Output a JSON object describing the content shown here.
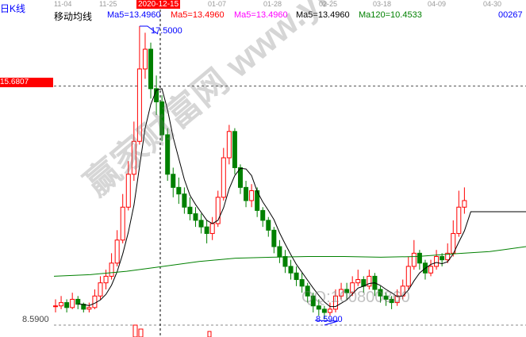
{
  "title": "日K线",
  "indicator_label": "移动均线",
  "ma_labels": [
    {
      "text": "Ma5=13.4960",
      "color": "#0000ff"
    },
    {
      "text": "Ma5=13.4960",
      "color": "#ff0000"
    },
    {
      "text": "Ma5=13.4960",
      "color": "#ff00ff"
    },
    {
      "text": "Ma5=13.4960",
      "color": "#000000"
    },
    {
      "text": "Ma120=10.4533",
      "color": "#008000"
    }
  ],
  "code": "00267",
  "dates": [
    "11-04",
    "11-25",
    "01-07",
    "01-28",
    "02-25",
    "03-18",
    "04-09",
    "04-30"
  ],
  "cursor_date": "2020-12-15",
  "cursor_price": "15.6807",
  "low_axis_label": "8.5900",
  "high_annotation": "17.5000",
  "low_annotation": "8.5900",
  "watermark": {
    "text": "赢家财富网 www.yingjia360.com",
    "contact": "QQ:100800360"
  },
  "colors": {
    "up": "#ff0000",
    "down": "#008000",
    "ma": "#000000",
    "ma120": "#008000",
    "cursor_bg": "#ff0000"
  },
  "chart_data": {
    "type": "candlestick",
    "ylim": [
      8.59,
      17.5
    ],
    "candles": [
      [
        9.0,
        9.2,
        8.8,
        9.0
      ],
      [
        9.0,
        9.3,
        8.9,
        9.1
      ],
      [
        9.1,
        9.2,
        8.8,
        8.95
      ],
      [
        8.95,
        9.4,
        8.9,
        9.2
      ],
      [
        9.2,
        9.3,
        8.9,
        9.05
      ],
      [
        9.05,
        9.1,
        8.8,
        8.9
      ],
      [
        8.9,
        9.1,
        8.8,
        8.95
      ],
      [
        8.95,
        9.5,
        8.9,
        9.3
      ],
      [
        9.3,
        9.9,
        9.2,
        9.7
      ],
      [
        9.7,
        10.1,
        9.5,
        9.9
      ],
      [
        9.9,
        10.6,
        9.8,
        10.3
      ],
      [
        10.3,
        11.3,
        10.2,
        11.0
      ],
      [
        11.0,
        12.4,
        10.9,
        12.0
      ],
      [
        12.0,
        13.4,
        11.9,
        13.0
      ],
      [
        13.0,
        14.6,
        12.8,
        14.0
      ],
      [
        14.0,
        17.5,
        13.9,
        16.2
      ],
      [
        16.2,
        17.3,
        15.9,
        16.8
      ],
      [
        16.8,
        17.0,
        15.3,
        15.6
      ],
      [
        15.6,
        16.0,
        14.8,
        15.2
      ],
      [
        15.2,
        15.4,
        14.0,
        14.2
      ],
      [
        14.2,
        14.4,
        12.8,
        13.0
      ],
      [
        13.0,
        13.2,
        12.3,
        12.6
      ],
      [
        12.6,
        12.9,
        12.1,
        12.4
      ],
      [
        12.4,
        12.6,
        11.8,
        12.0
      ],
      [
        12.0,
        12.3,
        11.6,
        11.8
      ],
      [
        11.8,
        12.0,
        11.4,
        11.6
      ],
      [
        11.6,
        11.8,
        11.2,
        11.4
      ],
      [
        11.4,
        11.6,
        10.9,
        11.2
      ],
      [
        11.2,
        11.7,
        11.0,
        11.5
      ],
      [
        11.5,
        12.5,
        11.4,
        12.3
      ],
      [
        12.3,
        13.8,
        12.2,
        13.5
      ],
      [
        13.5,
        14.5,
        13.3,
        14.3
      ],
      [
        14.3,
        14.4,
        13.0,
        13.2
      ],
      [
        13.2,
        13.3,
        12.4,
        12.6
      ],
      [
        12.6,
        12.8,
        12.0,
        12.2
      ],
      [
        12.2,
        12.7,
        12.0,
        12.5
      ],
      [
        12.5,
        12.6,
        11.7,
        11.9
      ],
      [
        11.9,
        12.0,
        11.4,
        11.6
      ],
      [
        11.6,
        11.7,
        11.1,
        11.3
      ],
      [
        11.3,
        11.4,
        10.6,
        10.8
      ],
      [
        10.8,
        11.0,
        10.3,
        10.5
      ],
      [
        10.5,
        10.7,
        10.0,
        10.2
      ],
      [
        10.2,
        10.4,
        9.8,
        10.0
      ],
      [
        10.0,
        10.2,
        9.6,
        9.8
      ],
      [
        9.8,
        10.0,
        9.4,
        9.6
      ],
      [
        9.6,
        9.7,
        9.1,
        9.3
      ],
      [
        9.3,
        9.4,
        8.8,
        9.0
      ],
      [
        9.0,
        9.2,
        8.7,
        8.9
      ],
      [
        8.9,
        9.0,
        8.59,
        8.8
      ],
      [
        8.8,
        9.1,
        8.7,
        8.9
      ],
      [
        8.9,
        9.5,
        8.8,
        9.3
      ],
      [
        9.3,
        9.7,
        9.2,
        9.5
      ],
      [
        9.5,
        9.7,
        9.2,
        9.4
      ],
      [
        9.4,
        9.9,
        9.3,
        9.7
      ],
      [
        9.7,
        10.1,
        9.6,
        9.8
      ],
      [
        9.8,
        9.9,
        9.4,
        9.6
      ],
      [
        9.6,
        10.1,
        9.5,
        9.9
      ],
      [
        9.9,
        10.0,
        9.3,
        9.5
      ],
      [
        9.5,
        9.6,
        9.1,
        9.3
      ],
      [
        9.3,
        9.4,
        9.0,
        9.2
      ],
      [
        9.2,
        9.3,
        8.9,
        9.1
      ],
      [
        9.1,
        9.5,
        9.0,
        9.3
      ],
      [
        9.3,
        9.8,
        9.2,
        9.6
      ],
      [
        9.6,
        10.5,
        9.5,
        10.2
      ],
      [
        10.2,
        11.0,
        10.1,
        10.6
      ],
      [
        10.6,
        10.7,
        10.1,
        10.3
      ],
      [
        10.3,
        10.4,
        9.8,
        10.0
      ],
      [
        10.0,
        10.4,
        9.9,
        10.2
      ],
      [
        10.2,
        10.7,
        10.1,
        10.5
      ],
      [
        10.5,
        10.6,
        10.2,
        10.4
      ],
      [
        10.4,
        10.9,
        10.3,
        10.6
      ],
      [
        10.6,
        11.6,
        10.5,
        11.2
      ],
      [
        11.2,
        12.5,
        11.1,
        12.0
      ],
      [
        12.0,
        12.6,
        11.8,
        12.2
      ]
    ],
    "ma120": [
      9.9,
      9.95,
      10.05,
      10.2,
      10.35,
      10.45,
      10.48,
      10.5,
      10.5,
      10.48,
      10.5,
      10.58,
      10.65,
      10.8
    ],
    "ma_extended_value": 11.86
  }
}
